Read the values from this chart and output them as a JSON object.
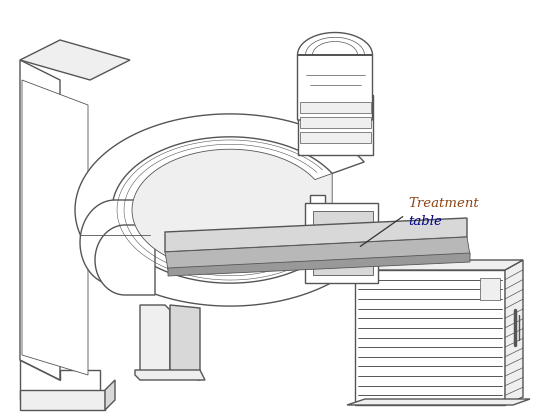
{
  "background_color": "#ffffff",
  "line_color": "#888888",
  "line_color_dark": "#555555",
  "fill_white": "#ffffff",
  "fill_light": "#efefef",
  "fill_mid": "#d8d8d8",
  "fill_dark": "#b8b8b8",
  "fill_darker": "#999999",
  "annotation_color_treatment": "#8B4513",
  "annotation_color_table": "#00008B",
  "figure_width": 5.59,
  "figure_height": 4.19,
  "dpi": 100
}
